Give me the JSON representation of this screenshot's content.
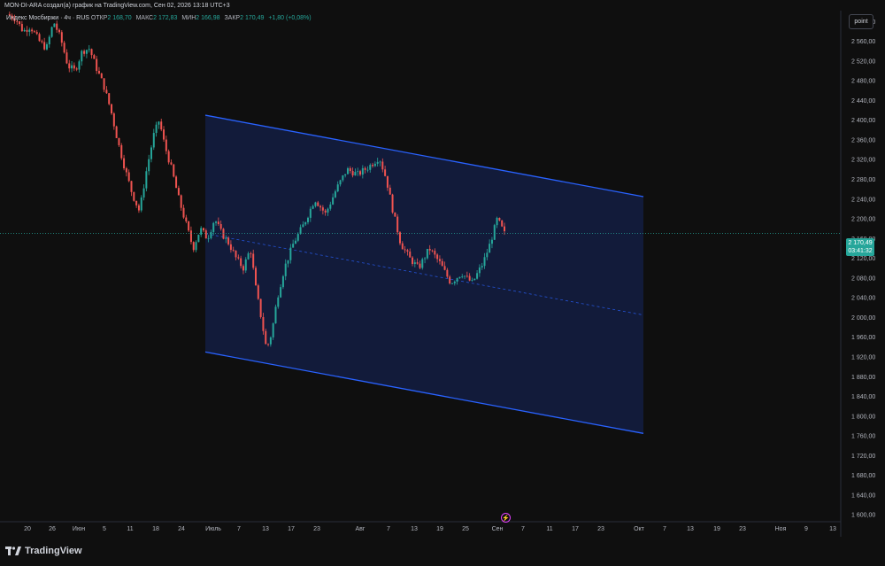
{
  "header": {
    "attribution": "MON-DI-ARA создал(а) график на TradingView.com, Сен 02, 2026 13:18 UTC+3"
  },
  "legend": {
    "symbol": "Индекс Мосбиржи · 4ч · RUS",
    "open_label": "ОТКР",
    "open": "2 168,70",
    "high_label": "МАКС",
    "high": "2 172,83",
    "low_label": "МИН",
    "low": "2 166,98",
    "close_label": "ЗАКР",
    "close": "2 170,49",
    "change": "+1,80 (+0,08%)"
  },
  "toolbar": {
    "scale_button": "point"
  },
  "price_tag": {
    "price": "2 170,49",
    "countdown": "03:41:32"
  },
  "brand": {
    "name": "TradingView"
  },
  "colors": {
    "up": "#26a69a",
    "down": "#ef5350",
    "channel": "#2962ff",
    "channel_fill": "#131c3d",
    "price_line": "#26a69a"
  },
  "chart_data": {
    "type": "candlestick",
    "x_ticks": [
      "20",
      "26",
      "Июн",
      "5",
      "11",
      "18",
      "24",
      "Июль",
      "7",
      "13",
      "17",
      "23",
      "Авг",
      "7",
      "13",
      "19",
      "25",
      "Сен",
      "7",
      "11",
      "17",
      "23",
      "Окт",
      "7",
      "13",
      "19",
      "23",
      "Ноя",
      "9",
      "13"
    ],
    "y_ticks": [
      "2 600,00",
      "2 560,00",
      "2 520,00",
      "2 480,00",
      "2 440,00",
      "2 400,00",
      "2 360,00",
      "2 320,00",
      "2 280,00",
      "2 240,00",
      "2 200,00",
      "2 160,00",
      "2 120,00",
      "2 080,00",
      "2 040,00",
      "2 000,00",
      "1 960,00",
      "1 920,00",
      "1 880,00",
      "1 840,00",
      "1 800,00",
      "1 760,00",
      "1 720,00",
      "1 680,00",
      "1 640,00",
      "1 600,00"
    ],
    "ylim": [
      1586,
      2622
    ],
    "last_price": 2170.49,
    "price_path": [
      [
        0,
        2615
      ],
      [
        0.05,
        2605
      ],
      [
        0.09,
        2580
      ],
      [
        0.13,
        2590
      ],
      [
        0.18,
        2560
      ],
      [
        0.22,
        2545
      ],
      [
        0.26,
        2600
      ],
      [
        0.3,
        2565
      ],
      [
        0.34,
        2510
      ],
      [
        0.38,
        2500
      ],
      [
        0.42,
        2540
      ],
      [
        0.46,
        2545
      ],
      [
        0.5,
        2505
      ],
      [
        0.54,
        2470
      ],
      [
        0.58,
        2420
      ],
      [
        0.62,
        2355
      ],
      [
        0.66,
        2300
      ],
      [
        0.7,
        2250
      ],
      [
        0.74,
        2215
      ],
      [
        0.78,
        2300
      ],
      [
        0.82,
        2370
      ],
      [
        0.85,
        2400
      ],
      [
        0.88,
        2350
      ],
      [
        0.92,
        2300
      ],
      [
        0.96,
        2240
      ],
      [
        1.0,
        2190
      ],
      [
        1.04,
        2140
      ],
      [
        1.08,
        2180
      ],
      [
        1.12,
        2160
      ],
      [
        1.16,
        2200
      ],
      [
        1.2,
        2170
      ],
      [
        1.24,
        2150
      ],
      [
        1.28,
        2120
      ],
      [
        1.32,
        2100
      ],
      [
        1.36,
        2140
      ],
      [
        1.39,
        2060
      ],
      [
        1.42,
        2000
      ],
      [
        1.45,
        1935
      ],
      [
        1.48,
        1970
      ],
      [
        1.51,
        2040
      ],
      [
        1.55,
        2100
      ],
      [
        1.6,
        2150
      ],
      [
        1.66,
        2190
      ],
      [
        1.72,
        2240
      ],
      [
        1.78,
        2210
      ],
      [
        1.84,
        2260
      ],
      [
        1.9,
        2300
      ],
      [
        1.96,
        2290
      ],
      [
        2.02,
        2305
      ],
      [
        2.08,
        2325
      ],
      [
        2.12,
        2280
      ],
      [
        2.16,
        2210
      ],
      [
        2.2,
        2150
      ],
      [
        2.25,
        2120
      ],
      [
        2.3,
        2100
      ],
      [
        2.36,
        2140
      ],
      [
        2.42,
        2110
      ],
      [
        2.48,
        2070
      ],
      [
        2.54,
        2090
      ],
      [
        2.6,
        2070
      ],
      [
        2.66,
        2110
      ],
      [
        2.7,
        2150
      ],
      [
        2.74,
        2200
      ],
      [
        2.78,
        2170
      ]
    ],
    "channel": {
      "upper": [
        [
          0,
          2410
        ],
        [
          1,
          2245
        ]
      ],
      "lower": [
        [
          0,
          1930
        ],
        [
          1,
          1765
        ]
      ],
      "mid": [
        [
          0,
          2170
        ],
        [
          1,
          2005
        ]
      ]
    }
  }
}
